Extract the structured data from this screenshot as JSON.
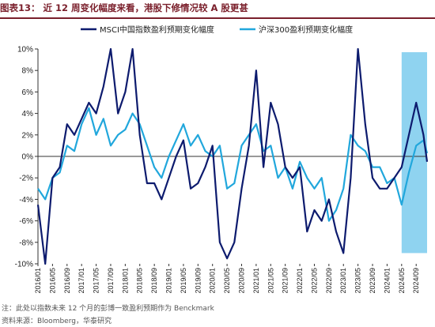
{
  "header": {
    "figure_label": "图表13：",
    "title": "近 12 周变化幅度来看，港股下修情况较 A 股更甚"
  },
  "footer": {
    "note": "注：此处以指数未来 12 个月的彭博一致盈利预期作为 Benckmark",
    "source": "资料来源：Bloomberg，华泰研究"
  },
  "colors": {
    "msci": "#0d1b6e",
    "csi300": "#21a7dc",
    "highlight": "#8fd3f0",
    "axis": "#333333"
  },
  "chart_data": {
    "type": "line",
    "title": "",
    "xlabel": "",
    "ylabel": "",
    "ylim": [
      -10,
      10
    ],
    "y_ticks": [
      "10%",
      "8%",
      "6%",
      "4%",
      "2%",
      "0%",
      "-2%",
      "-4%",
      "-6%",
      "-8%",
      "-10%"
    ],
    "y_tick_values": [
      10,
      8,
      6,
      4,
      2,
      0,
      -2,
      -4,
      -6,
      -8,
      -10
    ],
    "grid": false,
    "legend": "top",
    "x_ticks": [
      "2016/01",
      "2016/05",
      "2016/09",
      "2017/01",
      "2017/05",
      "2017/09",
      "2018/01",
      "2018/05",
      "2018/09",
      "2019/01",
      "2019/05",
      "2019/09",
      "2020/01",
      "2020/05",
      "2020/09",
      "2021/01",
      "2021/05",
      "2021/09",
      "2022/01",
      "2022/05",
      "2022/09",
      "2023/01",
      "2023/05",
      "2023/09",
      "2024/01",
      "2024/05",
      "2024/09"
    ],
    "highlight_range": [
      "2024/05",
      "2024/12"
    ],
    "x": [
      "2016/01",
      "2016/03",
      "2016/05",
      "2016/07",
      "2016/09",
      "2016/11",
      "2017/01",
      "2017/03",
      "2017/05",
      "2017/07",
      "2017/09",
      "2017/11",
      "2018/01",
      "2018/03",
      "2018/05",
      "2018/07",
      "2018/09",
      "2018/11",
      "2019/01",
      "2019/03",
      "2019/05",
      "2019/07",
      "2019/09",
      "2019/11",
      "2020/01",
      "2020/03",
      "2020/05",
      "2020/07",
      "2020/09",
      "2020/11",
      "2021/01",
      "2021/03",
      "2021/05",
      "2021/07",
      "2021/09",
      "2021/11",
      "2022/01",
      "2022/03",
      "2022/05",
      "2022/07",
      "2022/09",
      "2022/11",
      "2023/01",
      "2023/03",
      "2023/05",
      "2023/07",
      "2023/09",
      "2023/11",
      "2024/01",
      "2024/03",
      "2024/05",
      "2024/07",
      "2024/09",
      "2024/11",
      "2024/12"
    ],
    "series": [
      {
        "name": "MSCI中国指数盈利预期变化幅度",
        "color": "#0d1b6e",
        "values": [
          -4.5,
          -10,
          -2,
          -1,
          3,
          2,
          3.5,
          5,
          4,
          6.5,
          10,
          4,
          6,
          10,
          2,
          -2.5,
          -2.5,
          -4,
          -2,
          0,
          1.5,
          -3,
          -2.5,
          -1,
          1,
          -8,
          -9.5,
          -8,
          -3,
          1,
          8,
          -1,
          5,
          3,
          -1,
          -2,
          -1,
          -7,
          -5,
          -6,
          -4,
          -7,
          -9,
          -2,
          10,
          3,
          -2,
          -3,
          -3,
          -2,
          -1,
          2,
          5,
          2,
          -0.5
        ]
      },
      {
        "name": "沪深300盈利预期变化幅度",
        "color": "#21a7dc",
        "values": [
          -3,
          -4,
          -2,
          -1.5,
          1,
          0.5,
          3,
          4.5,
          2,
          3.5,
          1,
          2,
          2.5,
          4,
          3,
          1,
          -1,
          -2,
          0,
          1.5,
          3,
          1,
          2,
          0.5,
          0,
          1,
          -3,
          -2.5,
          1,
          2,
          3,
          0.5,
          1,
          -2,
          -1,
          -3,
          -0.5,
          -2,
          -3,
          -2,
          -6,
          -5,
          -3,
          2,
          1,
          0.5,
          -1,
          -1,
          -2.5,
          -2,
          -4.5,
          -1.5,
          1,
          1.5,
          0.3
        ]
      }
    ]
  }
}
